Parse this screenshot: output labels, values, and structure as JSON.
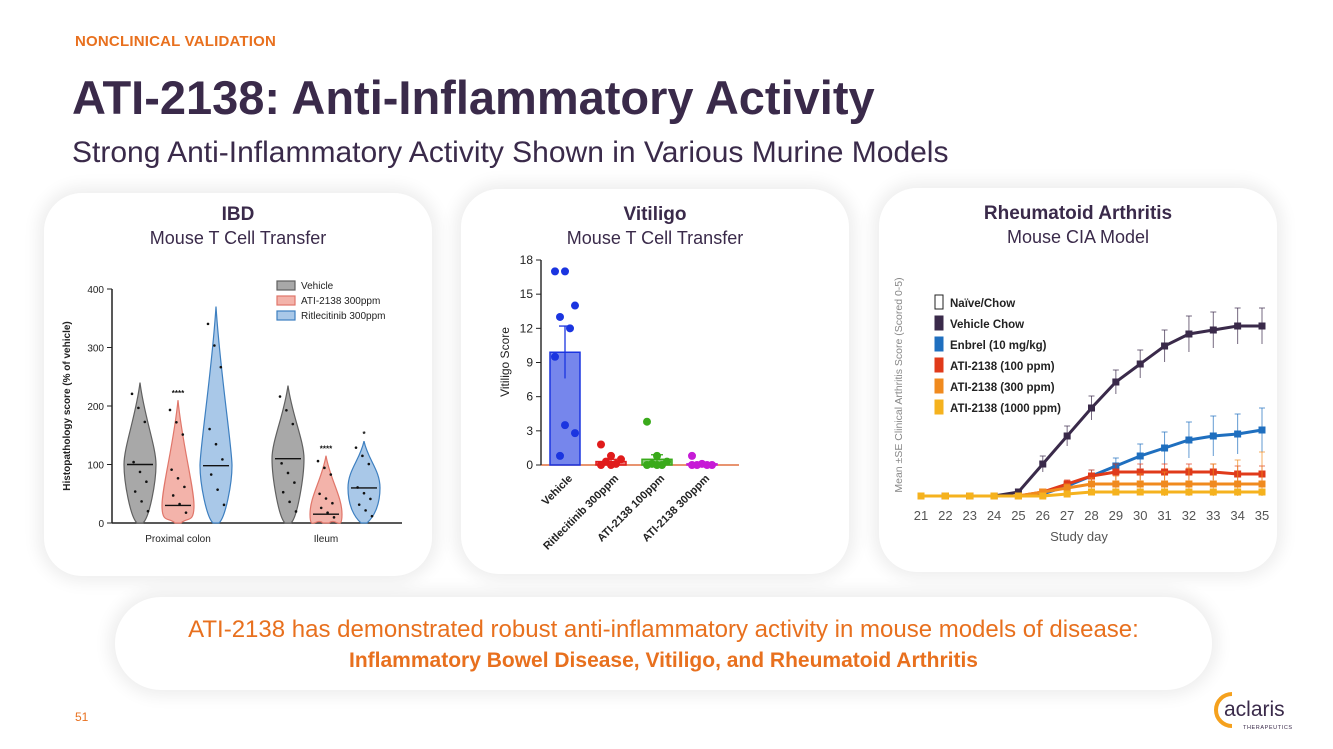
{
  "header": {
    "kicker": "NONCLINICAL VALIDATION",
    "title": "ATI-2138: Anti-Inflammatory Activity",
    "subtitle": "Strong Anti-Inflammatory Activity Shown in Various Murine Models"
  },
  "panels": {
    "ibd": {
      "title": "IBD",
      "subtitle": "Mouse T Cell Transfer"
    },
    "vitiligo": {
      "title": "Vitiligo",
      "subtitle": "Mouse T Cell Transfer"
    },
    "ra": {
      "title": "Rheumatoid Arthritis",
      "subtitle": "Mouse CIA Model"
    }
  },
  "banner": {
    "line1": "ATI-2138 has demonstrated robust anti-inflammatory activity in mouse models of disease:",
    "line2": "Inflammatory Bowel Disease, Vitiligo, and Rheumatoid Arthritis"
  },
  "footer": {
    "page_number": "51",
    "logo_text": "aclaris",
    "logo_tagline": "THERAPEUTICS"
  },
  "colors": {
    "accent": "#e8701e",
    "title": "#3a2a4a"
  },
  "chart_data": [
    {
      "type": "violin",
      "title": "IBD",
      "ylabel": "Histopathology score (% of vehicle)",
      "ylim": [
        0,
        400
      ],
      "yticks": [
        0,
        100,
        200,
        300,
        400
      ],
      "categories": [
        "Proximal colon",
        "Ileum"
      ],
      "series": [
        {
          "name": "Vehicle",
          "color": "#606060",
          "fill": "#a8a8a8",
          "median": [
            100,
            110
          ],
          "max": [
            240,
            235
          ],
          "significance": [
            "",
            ""
          ]
        },
        {
          "name": "ATI-2138 300ppm",
          "color": "#e0766a",
          "fill": "#f3b3aa",
          "median": [
            30,
            15
          ],
          "max": [
            210,
            115
          ],
          "significance": [
            "****",
            "****"
          ]
        },
        {
          "name": "Ritlecitinib 300ppm",
          "color": "#3d7fc0",
          "fill": "#a9c8e8",
          "median": [
            98,
            60
          ],
          "max": [
            370,
            140
          ],
          "significance": [
            "",
            "*"
          ]
        }
      ]
    },
    {
      "type": "bar",
      "title": "Vitiligo",
      "ylabel": "Vitiligo Score",
      "ylim": [
        0,
        18
      ],
      "yticks": [
        0,
        3,
        6,
        9,
        12,
        15,
        18
      ],
      "categories": [
        "Vehicle",
        "Ritlecitinib 300ppm",
        "ATI-2138 100ppm",
        "ATI-2138 300ppm"
      ],
      "values": [
        9.9,
        0.3,
        0.5,
        0.1
      ],
      "errors": [
        2.3,
        0.2,
        0.4,
        0.1
      ],
      "colors": [
        "#1b35e0",
        "#e01b1b",
        "#3aaa1b",
        "#c61bd6"
      ],
      "points": [
        [
          17,
          17,
          14,
          13,
          12,
          9.5,
          3.5,
          2.8,
          0.8
        ],
        [
          1.8,
          0.8,
          0.5,
          0.3,
          0.1,
          0,
          0
        ],
        [
          3.8,
          0.8,
          0.3,
          0.1,
          0,
          0,
          0
        ],
        [
          0.8,
          0.1,
          0,
          0,
          0,
          0
        ]
      ]
    },
    {
      "type": "line",
      "title": "Rheumatoid Arthritis",
      "xlabel": "Study day",
      "ylabel": "Mean ±SE Clinical Arthritis Score (Scored 0-5)",
      "x": [
        21,
        22,
        23,
        24,
        25,
        26,
        27,
        28,
        29,
        30,
        31,
        32,
        33,
        34,
        35
      ],
      "ylim": [
        0,
        5
      ],
      "series": [
        {
          "name": "Naïve/Chow",
          "color": "#ffffff",
          "values": [
            0,
            0,
            0,
            0,
            0,
            0,
            0,
            0,
            0,
            0,
            0,
            0,
            0,
            0,
            0
          ]
        },
        {
          "name": "Vehicle Chow",
          "color": "#3a2a4a",
          "values": [
            0,
            0,
            0,
            0,
            0.1,
            0.8,
            1.5,
            2.2,
            2.85,
            3.3,
            3.75,
            4.05,
            4.15,
            4.25,
            4.25
          ],
          "errors": [
            0,
            0,
            0,
            0,
            0.05,
            0.2,
            0.25,
            0.3,
            0.3,
            0.35,
            0.4,
            0.45,
            0.45,
            0.45,
            0.45
          ]
        },
        {
          "name": "Enbrel (10 mg/kg)",
          "color": "#1f6fbf",
          "values": [
            0,
            0,
            0,
            0,
            0,
            0.05,
            0.25,
            0.5,
            0.75,
            1.0,
            1.2,
            1.4,
            1.5,
            1.55,
            1.65
          ],
          "errors": [
            0,
            0,
            0,
            0,
            0,
            0.05,
            0.1,
            0.15,
            0.2,
            0.3,
            0.4,
            0.45,
            0.5,
            0.5,
            0.55
          ]
        },
        {
          "name": "ATI-2138 (100 ppm)",
          "color": "#e03a1a",
          "values": [
            0,
            0,
            0,
            0,
            0,
            0.1,
            0.3,
            0.5,
            0.6,
            0.6,
            0.6,
            0.6,
            0.6,
            0.55,
            0.55
          ],
          "errors": [
            0,
            0,
            0,
            0,
            0,
            0.05,
            0.1,
            0.15,
            0.2,
            0.2,
            0.2,
            0.2,
            0.2,
            0.2,
            0.2
          ]
        },
        {
          "name": "ATI-2138 (300 ppm)",
          "color": "#f08a1e",
          "values": [
            0,
            0,
            0,
            0,
            0,
            0.1,
            0.2,
            0.3,
            0.3,
            0.3,
            0.3,
            0.3,
            0.3,
            0.3,
            0.3
          ],
          "errors": [
            0,
            0,
            0,
            0,
            0,
            0.05,
            0.1,
            0.15,
            0.2,
            0.25,
            0.3,
            0.4,
            0.5,
            0.6,
            0.8
          ]
        },
        {
          "name": "ATI-2138 (1000 ppm)",
          "color": "#f5b21e",
          "values": [
            0,
            0,
            0,
            0,
            0,
            0,
            0.05,
            0.1,
            0.1,
            0.1,
            0.1,
            0.1,
            0.1,
            0.1,
            0.1
          ],
          "errors": [
            0,
            0,
            0,
            0,
            0,
            0,
            0.05,
            0.05,
            0.05,
            0.05,
            0.05,
            0.05,
            0.05,
            0.05,
            0.05
          ]
        }
      ]
    }
  ]
}
